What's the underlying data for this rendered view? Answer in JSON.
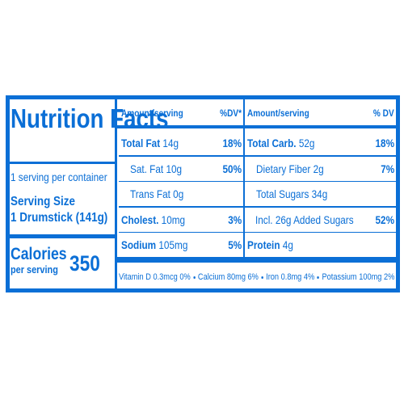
{
  "title": "Nutrition Facts",
  "servings": "1 serving per container",
  "serving_size": {
    "label": "Serving Size",
    "value": "1 Drumstick (141g)"
  },
  "calories": {
    "label": "Calories",
    "sublabel": "per serving",
    "value": "350"
  },
  "columns": [
    {
      "amount_header": "Amount/serving",
      "dv_header": "%DV*",
      "rows": [
        {
          "name": "Total Fat",
          "amount": "14g",
          "dv": "18%",
          "bold": true
        },
        {
          "name": "Sat. Fat",
          "amount": "10g",
          "dv": "50%",
          "indent": true
        },
        {
          "name": "Trans Fat",
          "amount": "0g",
          "indent": true
        },
        {
          "name": "Cholest.",
          "amount": "10mg",
          "dv": "3%",
          "bold": true
        },
        {
          "name": "Sodium",
          "amount": "105mg",
          "dv": "5%",
          "bold": true
        }
      ]
    },
    {
      "amount_header": "Amount/serving",
      "dv_header": "% DV",
      "rows": [
        {
          "name": "Total Carb.",
          "amount": "52g",
          "dv": "18%",
          "bold": true
        },
        {
          "name": "Dietary Fiber",
          "amount": "2g",
          "dv": "7%",
          "indent": true
        },
        {
          "name": "Total Sugars",
          "amount": "34g",
          "indent": true
        },
        {
          "name": "Incl. 26g Added Sugars",
          "dv": "52%",
          "indent": true,
          "indent_more": true
        },
        {
          "name": "Protein",
          "amount": "4g",
          "bold": true
        }
      ]
    }
  ],
  "micronutrients": [
    "Vitamin D 0.3mcg 0%",
    "Calcium 80mg 6%",
    "Iron 0.8mg 4%",
    "Potassium 100mg 2%"
  ]
}
